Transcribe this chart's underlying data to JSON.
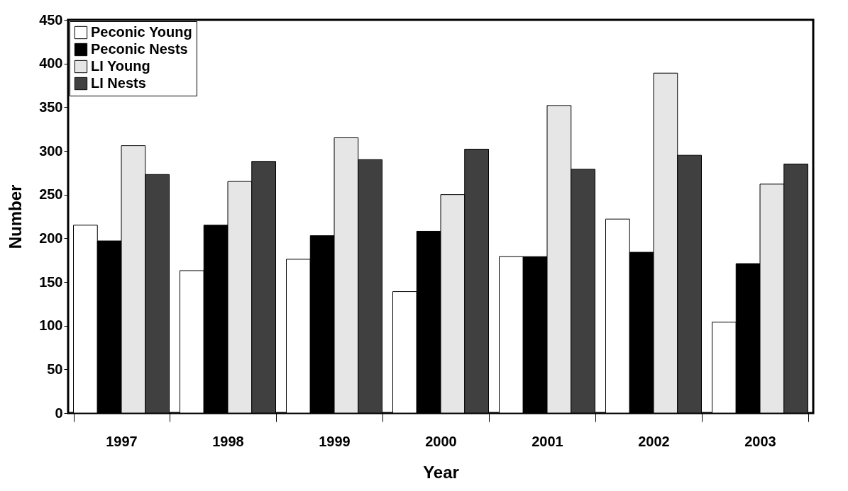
{
  "chart_data": {
    "type": "bar",
    "xlabel": "Year",
    "ylabel": "Number",
    "categories": [
      "1997",
      "1998",
      "1999",
      "2000",
      "2001",
      "2002",
      "2003"
    ],
    "series": [
      {
        "name": "Peconic Young",
        "color": "#ffffff",
        "values": [
          215,
          163,
          176,
          139,
          179,
          222,
          104
        ]
      },
      {
        "name": "Peconic Nests",
        "color": "#000000",
        "values": [
          197,
          215,
          203,
          208,
          179,
          184,
          171
        ]
      },
      {
        "name": "LI Young",
        "color": "#e6e6e6",
        "values": [
          306,
          265,
          315,
          250,
          352,
          389,
          262
        ]
      },
      {
        "name": "LI Nests",
        "color": "#404040",
        "values": [
          273,
          288,
          290,
          302,
          279,
          295,
          285
        ]
      }
    ],
    "ylim": [
      0,
      450
    ],
    "yticks": [
      0,
      50,
      100,
      150,
      200,
      250,
      300,
      350,
      400,
      450
    ],
    "grid": false,
    "legend": "top left"
  }
}
